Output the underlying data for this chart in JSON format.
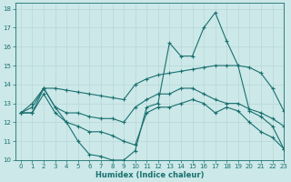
{
  "xlabel": "Humidex (Indice chaleur)",
  "bg_color": "#cce8e8",
  "line_color": "#1a7070",
  "xlim": [
    -0.5,
    23
  ],
  "ylim": [
    10,
    18.3
  ],
  "yticks": [
    10,
    11,
    12,
    13,
    14,
    15,
    16,
    17,
    18
  ],
  "xticks": [
    0,
    1,
    2,
    3,
    4,
    5,
    6,
    7,
    8,
    9,
    10,
    11,
    12,
    13,
    14,
    15,
    16,
    17,
    18,
    19,
    20,
    21,
    22,
    23
  ],
  "series": [
    {
      "x": [
        0,
        1,
        2,
        3,
        4,
        5,
        6,
        7,
        8,
        9,
        10,
        11,
        12,
        13,
        14,
        15,
        16,
        17,
        18,
        19,
        20,
        21,
        22,
        23
      ],
      "y": [
        12.5,
        13.0,
        13.8,
        12.8,
        12.0,
        11.0,
        10.3,
        10.2,
        10.0,
        10.0,
        10.5,
        12.8,
        13.0,
        16.2,
        15.5,
        15.5,
        17.0,
        17.8,
        16.3,
        15.0,
        12.6,
        12.3,
        11.8,
        10.6
      ]
    },
    {
      "x": [
        0,
        1,
        2,
        3,
        4,
        5,
        6,
        7,
        8,
        9,
        10,
        11,
        12,
        13,
        14,
        15,
        16,
        17,
        18,
        19,
        20,
        21,
        22,
        23
      ],
      "y": [
        12.5,
        12.5,
        13.8,
        13.8,
        13.7,
        13.6,
        13.5,
        13.4,
        13.3,
        13.2,
        14.0,
        14.3,
        14.5,
        14.6,
        14.7,
        14.8,
        14.9,
        15.0,
        15.0,
        15.0,
        14.9,
        14.6,
        13.8,
        12.6
      ]
    },
    {
      "x": [
        0,
        1,
        2,
        3,
        4,
        5,
        6,
        7,
        8,
        9,
        10,
        11,
        12,
        13,
        14,
        15,
        16,
        17,
        18,
        19,
        20,
        21,
        22,
        23
      ],
      "y": [
        12.5,
        12.8,
        13.8,
        12.8,
        12.5,
        12.5,
        12.3,
        12.2,
        12.2,
        12.0,
        12.8,
        13.2,
        13.5,
        13.5,
        13.8,
        13.8,
        13.5,
        13.2,
        13.0,
        13.0,
        12.7,
        12.5,
        12.2,
        11.8
      ]
    },
    {
      "x": [
        0,
        1,
        2,
        3,
        4,
        5,
        6,
        7,
        8,
        9,
        10,
        11,
        12,
        13,
        14,
        15,
        16,
        17,
        18,
        19,
        20,
        21,
        22,
        23
      ],
      "y": [
        12.5,
        12.5,
        13.5,
        12.5,
        12.0,
        11.8,
        11.5,
        11.5,
        11.3,
        11.0,
        10.8,
        12.5,
        12.8,
        12.8,
        13.0,
        13.2,
        13.0,
        12.5,
        12.8,
        12.6,
        12.0,
        11.5,
        11.2,
        10.6
      ]
    }
  ]
}
